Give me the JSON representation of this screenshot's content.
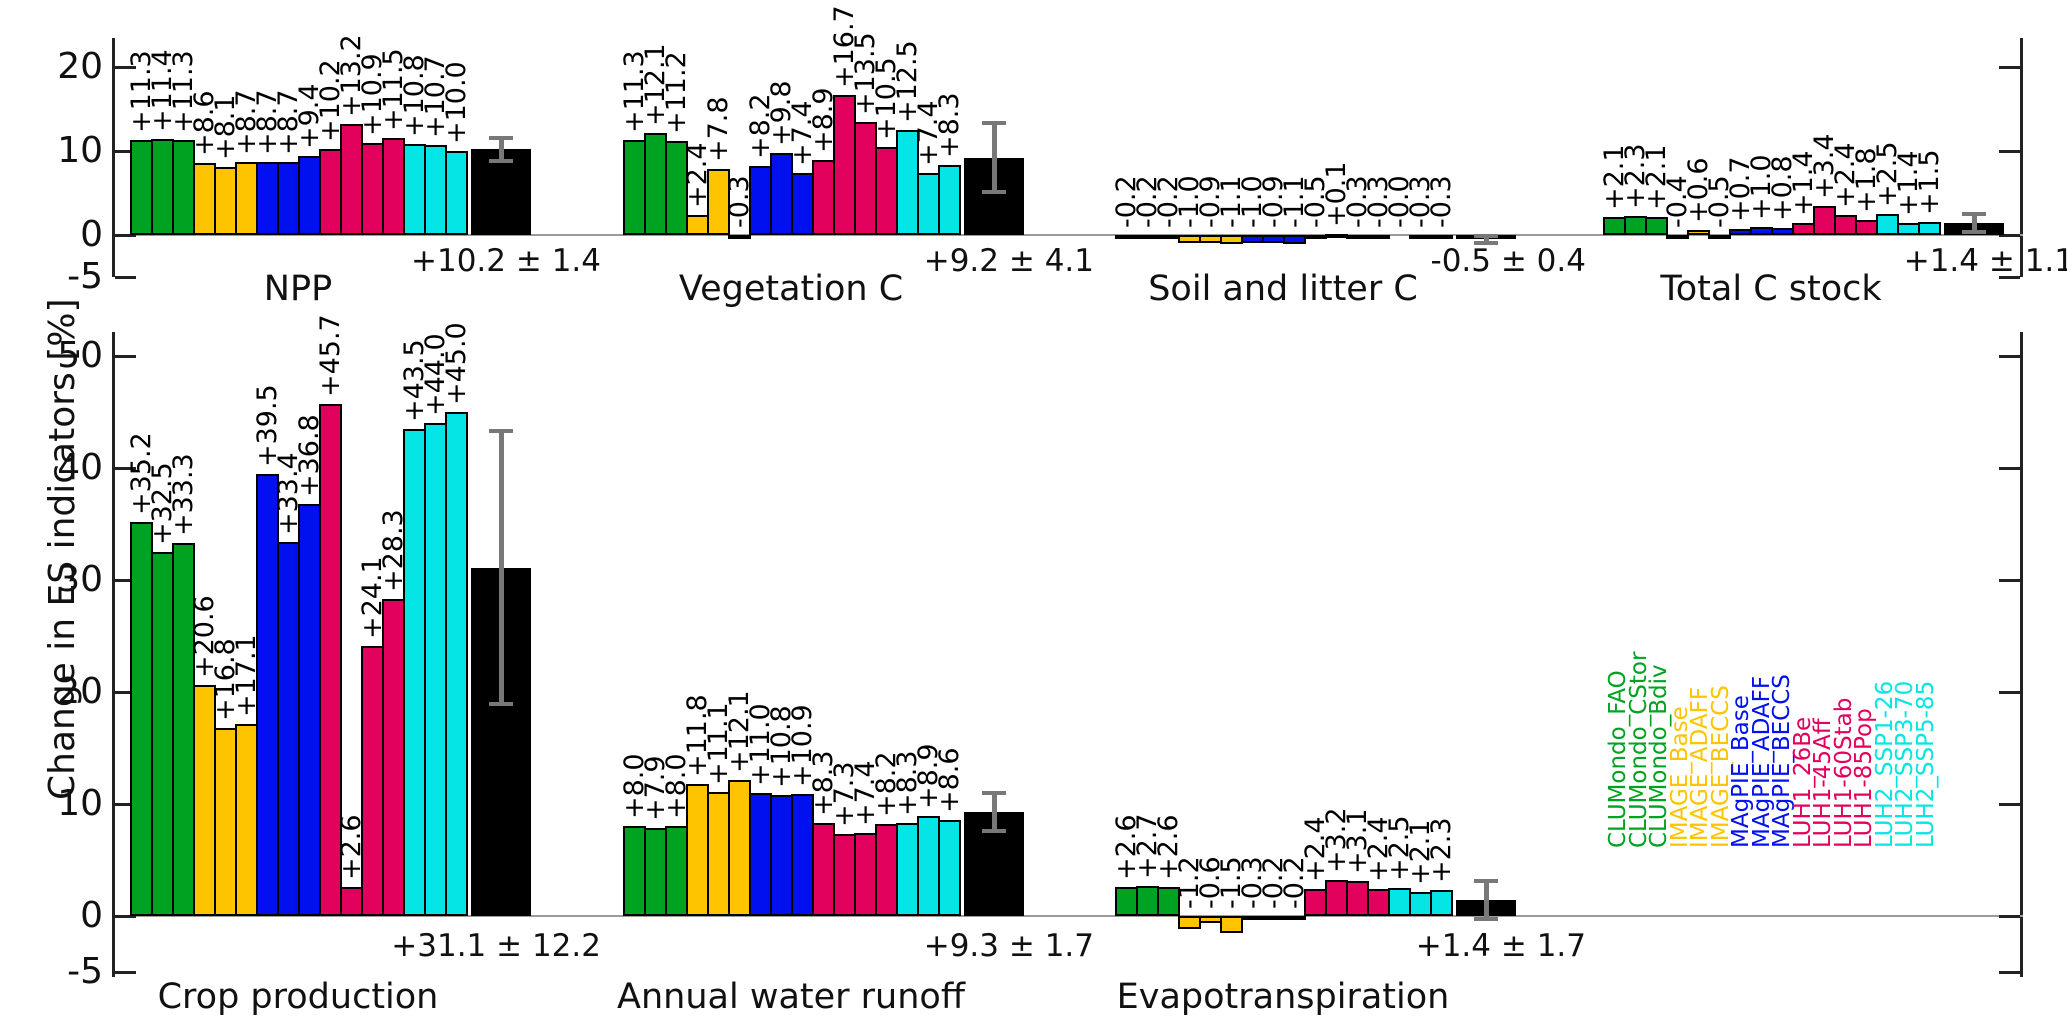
{
  "chart_data": {
    "type": "bar",
    "title": "",
    "ylabel": "Change in ES indicators [%]",
    "grid": false,
    "legend_position": "middle-right",
    "colors": {
      "mean_bar": "#000000",
      "error_bar": "#787878",
      "zero_line": "#9b9b9b",
      "background": "#ffffff"
    },
    "scenario_groups": [
      {
        "name": "CLUMondo",
        "color": "#00a321",
        "scenarios": [
          "CLUMondo_FAO",
          "CLUMondo_CStor",
          "CLUMondo_Bdiv"
        ]
      },
      {
        "name": "IMAGE",
        "color": "#ffc400",
        "scenarios": [
          "IMAGE_Base",
          "IMAGE_ADAFF",
          "IMAGE_BECCS"
        ]
      },
      {
        "name": "MAgPIE",
        "color": "#0010ee",
        "scenarios": [
          "MAgPIE_Base",
          "MAgPIE_ADAFF",
          "MAgPIE_BECCS"
        ]
      },
      {
        "name": "LUH1",
        "color": "#e2015d",
        "scenarios": [
          "LUH1_26Be",
          "LUH1-45Aff",
          "LUH1-60Stab",
          "LUH1-85Pop"
        ]
      },
      {
        "name": "LUH2",
        "color": "#06e5e5",
        "scenarios": [
          "LUH2_SSP1-26",
          "LUH2_SSP3-70",
          "LUH2_SSP5-85"
        ]
      }
    ],
    "rows": [
      {
        "ylim": [
          -5,
          23
        ],
        "yticks": [
          20,
          10,
          0,
          -5
        ],
        "panels": [
          {
            "label": "NPP",
            "values": [
              11.3,
              11.4,
              11.3,
              8.6,
              8.1,
              8.7,
              8.7,
              8.7,
              9.4,
              10.2,
              13.2,
              10.9,
              11.5,
              10.8,
              10.7,
              10.0
            ],
            "bar_labels": [
              "+11.3",
              "+11.4",
              "+11.3",
              "+8.6",
              "+8.1",
              "+8.7",
              "+8.7",
              "+8.7",
              "+9.4",
              "+10.2",
              "+13.2",
              "+10.9",
              "+11.5",
              "+10.8",
              "+10.7",
              "+10.0"
            ],
            "mean": 10.2,
            "std": 1.4,
            "mean_label": "+10.2 ± 1.4"
          },
          {
            "label": "Vegetation C",
            "values": [
              11.3,
              12.1,
              11.2,
              2.4,
              7.8,
              -0.3,
              8.2,
              9.8,
              7.4,
              8.9,
              16.7,
              13.5,
              10.5,
              12.5,
              7.4,
              8.3
            ],
            "bar_labels": [
              "+11.3",
              "+12.1",
              "+11.2",
              "+2.4",
              "+7.8",
              "-0.3",
              "+8.2",
              "+9.8",
              "+7.4",
              "+8.9",
              "+16.7",
              "+13.5",
              "+10.5",
              "+12.5",
              "+7.4",
              "+8.3"
            ],
            "mean": 9.2,
            "std": 4.1,
            "mean_label": "+9.2 ± 4.1"
          },
          {
            "label": "Soil and litter C",
            "values": [
              -0.2,
              -0.2,
              -0.2,
              -1.0,
              -0.9,
              -1.1,
              -1.0,
              -0.9,
              -1.1,
              -0.5,
              0.1,
              -0.3,
              -0.3,
              -0.0,
              -0.3,
              -0.3
            ],
            "bar_labels": [
              "-0.2",
              "-0.2",
              "-0.2",
              "-1.0",
              "-0.9",
              "-1.1",
              "-1.0",
              "-0.9",
              "-1.1",
              "-0.5",
              "+0.1",
              "-0.3",
              "-0.3",
              "-0.0",
              "-0.3",
              "-0.3"
            ],
            "mean": -0.5,
            "std": 0.4,
            "mean_label": "-0.5 ± 0.4"
          },
          {
            "label": "Total C stock",
            "values": [
              2.1,
              2.3,
              2.1,
              -0.4,
              0.6,
              -0.5,
              0.7,
              1.0,
              0.8,
              1.4,
              3.4,
              2.4,
              1.8,
              2.5,
              1.4,
              1.5
            ],
            "bar_labels": [
              "+2.1",
              "+2.3",
              "+2.1",
              "-0.4",
              "+0.6",
              "-0.5",
              "+0.7",
              "+1.0",
              "+0.8",
              "+1.4",
              "+3.4",
              "+2.4",
              "+1.8",
              "+2.5",
              "+1.4",
              "+1.5"
            ],
            "mean": 1.4,
            "std": 1.1,
            "mean_label": "+1.4 ± 1.1"
          }
        ]
      },
      {
        "ylim": [
          -5,
          52
        ],
        "yticks": [
          50,
          40,
          30,
          20,
          10,
          0,
          -5
        ],
        "panels": [
          {
            "label": "Crop production",
            "values": [
              35.2,
              32.5,
              33.3,
              20.6,
              16.8,
              17.1,
              39.5,
              33.4,
              36.8,
              45.7,
              2.6,
              24.1,
              28.3,
              43.5,
              44.0,
              45.0
            ],
            "bar_labels": [
              "+35.2",
              "+32.5",
              "+33.3",
              "+20.6",
              "+16.8",
              "+17.1",
              "+39.5",
              "+33.4",
              "+36.8",
              "+45.7",
              "+2.6",
              "+24.1",
              "+28.3",
              "+43.5",
              "+44.0",
              "+45.0"
            ],
            "mean": 31.1,
            "std": 12.2,
            "mean_label": "+31.1 ± 12.2"
          },
          {
            "label": "Annual water runoff",
            "values": [
              8.0,
              7.9,
              8.0,
              11.8,
              11.1,
              12.1,
              11.0,
              10.8,
              10.9,
              8.3,
              7.3,
              7.4,
              8.2,
              8.3,
              8.9,
              8.6
            ],
            "bar_labels": [
              "+8.0",
              "+7.9",
              "+8.0",
              "+11.8",
              "+11.1",
              "+12.1",
              "+11.0",
              "+10.8",
              "+10.9",
              "+8.3",
              "+7.3",
              "+7.4",
              "+8.2",
              "+8.3",
              "+8.9",
              "+8.6"
            ],
            "mean": 9.3,
            "std": 1.7,
            "mean_label": "+9.3 ± 1.7"
          },
          {
            "label": "Evapotranspiration",
            "values": [
              2.6,
              2.7,
              2.6,
              -1.2,
              -0.6,
              -1.5,
              -0.3,
              -0.2,
              -0.2,
              2.4,
              3.2,
              3.1,
              2.4,
              2.5,
              2.1,
              2.3
            ],
            "bar_labels": [
              "+2.6",
              "+2.7",
              "+2.6",
              "-1.2",
              "-0.6",
              "-1.5",
              "-0.3",
              "-0.2",
              "-0.2",
              "+2.4",
              "+3.2",
              "+3.1",
              "+2.4",
              "+2.5",
              "+2.1",
              "+2.3"
            ],
            "mean": 1.4,
            "std": 1.7,
            "mean_label": "+1.4 ± 1.7"
          }
        ]
      }
    ]
  }
}
